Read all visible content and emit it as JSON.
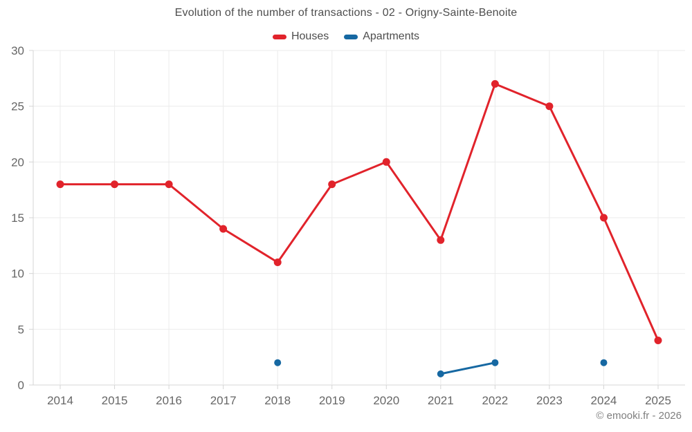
{
  "chart_data": {
    "type": "line",
    "title": "Evolution of the number of transactions - 02 - Origny-Sainte-Benoite",
    "x": [
      2014,
      2015,
      2016,
      2017,
      2018,
      2019,
      2020,
      2021,
      2022,
      2023,
      2024,
      2025
    ],
    "series": [
      {
        "name": "Houses",
        "color": "#e1232b",
        "values": [
          18,
          18,
          18,
          14,
          11,
          18,
          20,
          13,
          27,
          25,
          15,
          4
        ]
      },
      {
        "name": "Apartments",
        "color": "#1668a2",
        "values": [
          null,
          null,
          null,
          null,
          2,
          null,
          null,
          1,
          2,
          null,
          2,
          null
        ]
      }
    ],
    "ylim": [
      0,
      30
    ],
    "ytick_step": 5,
    "grid": true,
    "legend_position": "top",
    "colors": {
      "grid": "#ebebeb",
      "axis": "#d4d4d4",
      "tick": "#d4d4d4",
      "tick_label": "#666666",
      "title": "#4d4d4d"
    }
  },
  "footer": {
    "copyright": "© emooki.fr - 2026"
  }
}
